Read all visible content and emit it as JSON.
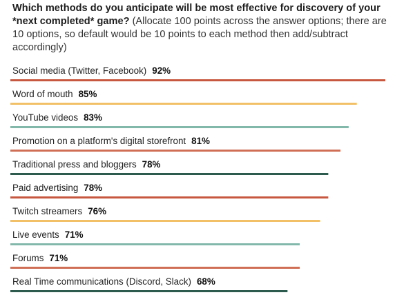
{
  "question": {
    "bold": "Which methods do you anticipate will be most effective for discovery of your *next completed* game?",
    "note": "(Allocate 100 points across the answer options; there are 10 options, so default would be 10 points to each method then add/subtract accordingly)"
  },
  "chart_data": {
    "type": "bar",
    "orientation": "horizontal",
    "title": "Which methods do you anticipate will be most effective for discovery of your *next completed* game?",
    "categories": [
      "Social media (Twitter, Facebook)",
      "Word of mouth",
      "YouTube videos",
      "Promotion on a platform's digital storefront",
      "Traditional press and bloggers",
      "Paid advertising",
      "Twitch streamers",
      "Live events",
      "Forums",
      "Real Time communications (Discord, Slack)"
    ],
    "values": [
      92,
      85,
      83,
      81,
      78,
      78,
      76,
      71,
      71,
      68
    ],
    "value_labels": [
      "92%",
      "85%",
      "83%",
      "81%",
      "78%",
      "78%",
      "76%",
      "71%",
      "71%",
      "68%"
    ],
    "bar_colors": [
      "#c8573f",
      "#f2c066",
      "#82b8aa",
      "#cf6e55",
      "#2d5c4f",
      "#c8573f",
      "#f2c066",
      "#82b8aa",
      "#cf6e55",
      "#2d5c4f"
    ],
    "xlim": [
      0,
      100
    ],
    "unit": "%"
  }
}
